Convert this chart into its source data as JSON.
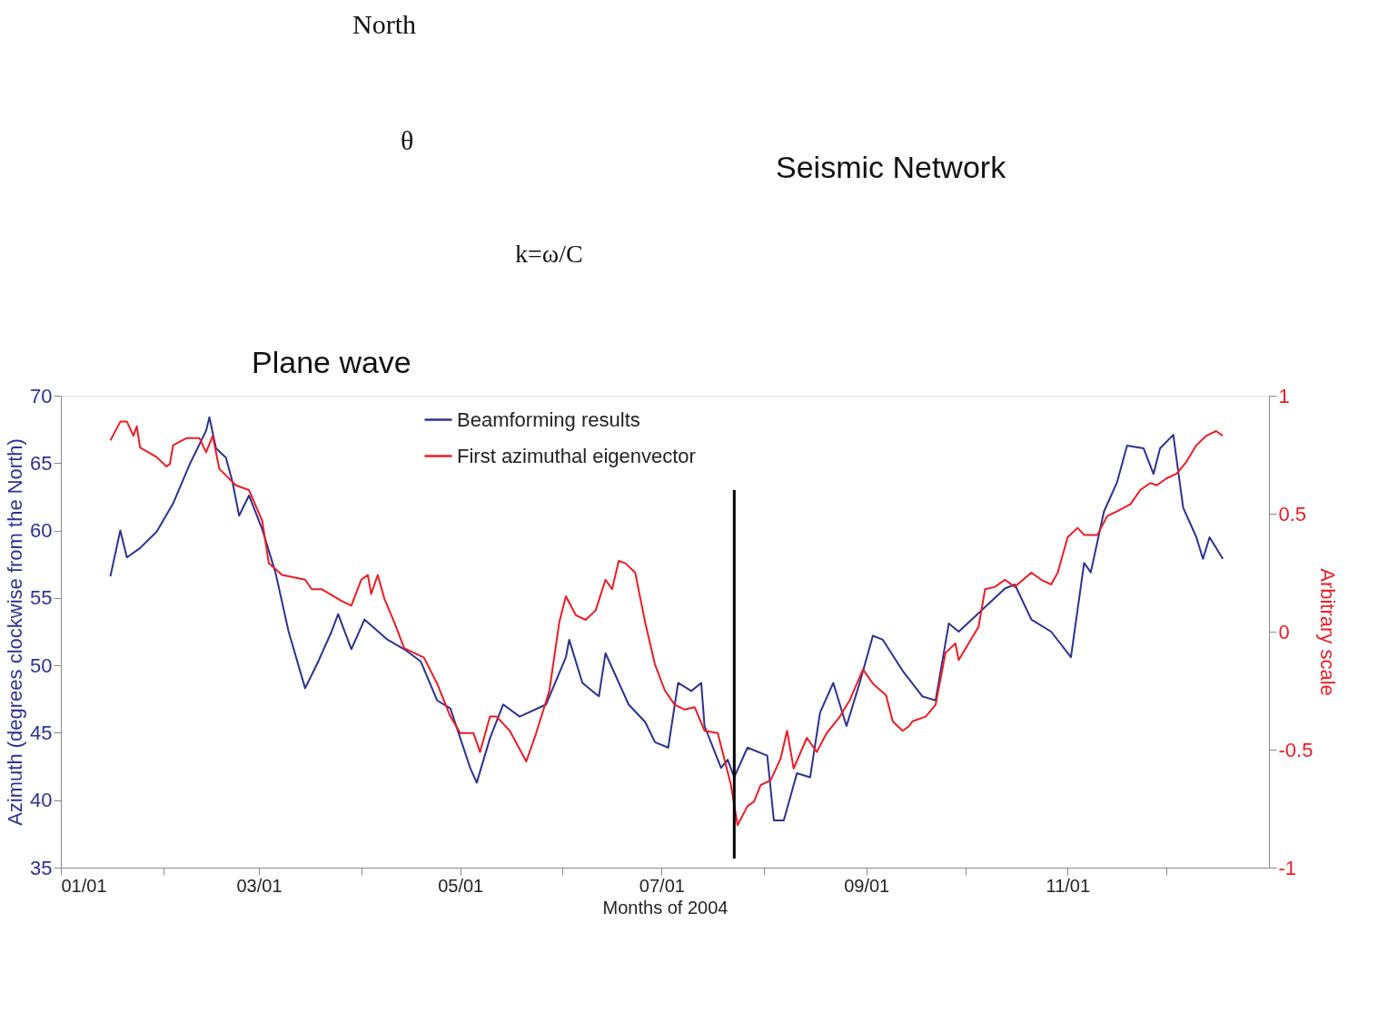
{
  "chart_data": {
    "type": "line",
    "annotations": [
      "North",
      "θ",
      "k=ω/C",
      "Seismic Network",
      "Plane wave"
    ],
    "xlabel": "Months of 2004",
    "ylabel": "Azimuth (degrees clockwise from the North)",
    "y2label": "Arbitrary scale",
    "xlim": [
      "2004-01-01",
      "2005-01-01"
    ],
    "xticks": [
      {
        "value": "2004-01-01",
        "label": "01/01"
      },
      {
        "value": "2004-02-01",
        "label": null
      },
      {
        "value": "2004-03-01",
        "label": "03/01"
      },
      {
        "value": "2004-04-01",
        "label": null
      },
      {
        "value": "2004-05-01",
        "label": "05/01"
      },
      {
        "value": "2004-06-01",
        "label": null
      },
      {
        "value": "2004-07-01",
        "label": "07/01"
      },
      {
        "value": "2004-08-01",
        "label": null
      },
      {
        "value": "2004-09-01",
        "label": "09/01"
      },
      {
        "value": "2004-10-01",
        "label": null
      },
      {
        "value": "2004-11-01",
        "label": "11/01"
      },
      {
        "value": "2004-12-01",
        "label": null
      }
    ],
    "ylim": [
      35,
      70
    ],
    "yticks": [
      35,
      40,
      45,
      50,
      55,
      60,
      65,
      70
    ],
    "y2lim": [
      -1,
      1
    ],
    "y2ticks": [
      -1,
      -0.5,
      0,
      0.5,
      1
    ],
    "grid": false,
    "legend": "top",
    "ref_lines": [
      {
        "axis": "x",
        "value": "2004-07-23",
        "color": "#000000"
      }
    ],
    "series": [
      {
        "name": "Beamforming results",
        "color": "#2e3192",
        "x": [
          "2004-01-16",
          "2004-01-19",
          "2004-01-21",
          "2004-01-25",
          "2004-01-30",
          "2004-02-04",
          "2004-02-09",
          "2004-02-14",
          "2004-02-15",
          "2004-02-17",
          "2004-02-20",
          "2004-02-22",
          "2004-02-24",
          "2004-02-27",
          "2004-03-02",
          "2004-03-06",
          "2004-03-10",
          "2004-03-15",
          "2004-03-19",
          "2004-03-23",
          "2004-03-25",
          "2004-03-29",
          "2004-04-02",
          "2004-04-09",
          "2004-04-14",
          "2004-04-19",
          "2004-04-24",
          "2004-04-28",
          "2004-05-04",
          "2004-05-06",
          "2004-05-10",
          "2004-05-14",
          "2004-05-19",
          "2004-05-27",
          "2004-06-02",
          "2004-06-03",
          "2004-06-07",
          "2004-06-12",
          "2004-06-14",
          "2004-06-21",
          "2004-06-26",
          "2004-06-29",
          "2004-07-03",
          "2004-07-06",
          "2004-07-10",
          "2004-07-13",
          "2004-07-14",
          "2004-07-19",
          "2004-07-21",
          "2004-07-23",
          "2004-07-27",
          "2004-08-02",
          "2004-08-04",
          "2004-08-07",
          "2004-08-11",
          "2004-08-15",
          "2004-08-18",
          "2004-08-22",
          "2004-08-26",
          "2004-08-30",
          "2004-09-03",
          "2004-09-06",
          "2004-09-12",
          "2004-09-18",
          "2004-09-22",
          "2004-09-26",
          "2004-09-29",
          "2004-10-06",
          "2004-10-13",
          "2004-10-16",
          "2004-10-21",
          "2004-10-27",
          "2004-11-02",
          "2004-11-06",
          "2004-11-08",
          "2004-11-12",
          "2004-11-16",
          "2004-11-19",
          "2004-11-24",
          "2004-11-27",
          "2004-11-29",
          "2004-12-03",
          "2004-12-06",
          "2004-12-10",
          "2004-12-12",
          "2004-12-14",
          "2004-12-18"
        ],
        "values": [
          56.6,
          60.0,
          58.0,
          58.7,
          59.9,
          62.0,
          64.9,
          67.4,
          68.4,
          66.1,
          65.4,
          63.6,
          61.1,
          62.6,
          60.1,
          56.9,
          52.5,
          48.3,
          50.3,
          52.5,
          53.8,
          51.2,
          53.4,
          51.9,
          51.2,
          50.3,
          47.4,
          46.8,
          42.4,
          41.3,
          44.6,
          47.1,
          46.2,
          47.1,
          50.6,
          51.9,
          48.7,
          47.7,
          50.9,
          47.1,
          45.8,
          44.3,
          43.9,
          48.7,
          48.1,
          48.7,
          45.5,
          42.4,
          43.0,
          41.7,
          43.9,
          43.3,
          38.5,
          38.5,
          42.0,
          41.7,
          46.5,
          48.7,
          45.5,
          48.7,
          52.2,
          51.9,
          49.6,
          47.7,
          47.4,
          53.1,
          52.5,
          54.1,
          55.7,
          56.0,
          53.4,
          52.5,
          50.6,
          57.6,
          56.9,
          61.4,
          63.6,
          66.3,
          66.1,
          64.2,
          66.1,
          67.1,
          61.7,
          59.5,
          57.9,
          59.5,
          57.9
        ]
      },
      {
        "name": "First azimuthal eigenvector",
        "color": "#ed1c24",
        "axis": "y2",
        "x": [
          "2004-01-16",
          "2004-01-19",
          "2004-01-21",
          "2004-01-23",
          "2004-01-24",
          "2004-01-25",
          "2004-01-30",
          "2004-02-02",
          "2004-02-03",
          "2004-02-04",
          "2004-02-08",
          "2004-02-12",
          "2004-02-14",
          "2004-02-16",
          "2004-02-18",
          "2004-02-23",
          "2004-02-27",
          "2004-03-02",
          "2004-03-04",
          "2004-03-08",
          "2004-03-15",
          "2004-03-17",
          "2004-03-20",
          "2004-03-26",
          "2004-03-29",
          "2004-04-01",
          "2004-04-03",
          "2004-04-04",
          "2004-04-06",
          "2004-04-08",
          "2004-04-11",
          "2004-04-14",
          "2004-04-20",
          "2004-04-24",
          "2004-04-28",
          "2004-05-01",
          "2004-05-05",
          "2004-05-07",
          "2004-05-10",
          "2004-05-12",
          "2004-05-16",
          "2004-05-21",
          "2004-05-24",
          "2004-05-28",
          "2004-05-31",
          "2004-06-02",
          "2004-06-05",
          "2004-06-08",
          "2004-06-11",
          "2004-06-14",
          "2004-06-16",
          "2004-06-18",
          "2004-06-20",
          "2004-06-23",
          "2004-06-26",
          "2004-06-29",
          "2004-07-02",
          "2004-07-05",
          "2004-07-08",
          "2004-07-11",
          "2004-07-14",
          "2004-07-18",
          "2004-07-22",
          "2004-07-24",
          "2004-07-27",
          "2004-07-29",
          "2004-07-31",
          "2004-08-03",
          "2004-08-06",
          "2004-08-08",
          "2004-08-10",
          "2004-08-14",
          "2004-08-17",
          "2004-08-20",
          "2004-08-24",
          "2004-08-27",
          "2004-08-31",
          "2004-09-03",
          "2004-09-07",
          "2004-09-09",
          "2004-09-12",
          "2004-09-14",
          "2004-09-15",
          "2004-09-19",
          "2004-09-22",
          "2004-09-25",
          "2004-09-28",
          "2004-09-29",
          "2004-10-02",
          "2004-10-05",
          "2004-10-07",
          "2004-10-10",
          "2004-10-13",
          "2004-10-16",
          "2004-10-21",
          "2004-10-24",
          "2004-10-27",
          "2004-10-29",
          "2004-11-01",
          "2004-11-04",
          "2004-11-06",
          "2004-11-10",
          "2004-11-13",
          "2004-11-16",
          "2004-11-20",
          "2004-11-23",
          "2004-11-26",
          "2004-11-28",
          "2004-12-01",
          "2004-12-04",
          "2004-12-07",
          "2004-12-10",
          "2004-12-13",
          "2004-12-16",
          "2004-12-18"
        ],
        "values": [
          0.81,
          0.89,
          0.89,
          0.83,
          0.87,
          0.78,
          0.74,
          0.7,
          0.71,
          0.79,
          0.82,
          0.82,
          0.76,
          0.83,
          0.69,
          0.62,
          0.6,
          0.47,
          0.29,
          0.24,
          0.22,
          0.18,
          0.18,
          0.13,
          0.11,
          0.22,
          0.24,
          0.16,
          0.24,
          0.14,
          0.04,
          -0.07,
          -0.11,
          -0.22,
          -0.36,
          -0.43,
          -0.43,
          -0.51,
          -0.36,
          -0.36,
          -0.42,
          -0.55,
          -0.43,
          -0.25,
          0.04,
          0.15,
          0.07,
          0.05,
          0.09,
          0.22,
          0.18,
          0.3,
          0.29,
          0.25,
          0.04,
          -0.14,
          -0.25,
          -0.31,
          -0.33,
          -0.32,
          -0.42,
          -0.43,
          -0.65,
          -0.82,
          -0.74,
          -0.72,
          -0.65,
          -0.63,
          -0.54,
          -0.42,
          -0.58,
          -0.45,
          -0.51,
          -0.43,
          -0.36,
          -0.29,
          -0.16,
          -0.22,
          -0.27,
          -0.38,
          -0.42,
          -0.4,
          -0.38,
          -0.36,
          -0.31,
          -0.09,
          -0.05,
          -0.12,
          -0.05,
          0.02,
          0.18,
          0.19,
          0.22,
          0.19,
          0.25,
          0.22,
          0.2,
          0.25,
          0.4,
          0.44,
          0.41,
          0.41,
          0.49,
          0.51,
          0.54,
          0.6,
          0.63,
          0.62,
          0.65,
          0.67,
          0.72,
          0.79,
          0.83,
          0.85,
          0.83
        ]
      }
    ]
  }
}
